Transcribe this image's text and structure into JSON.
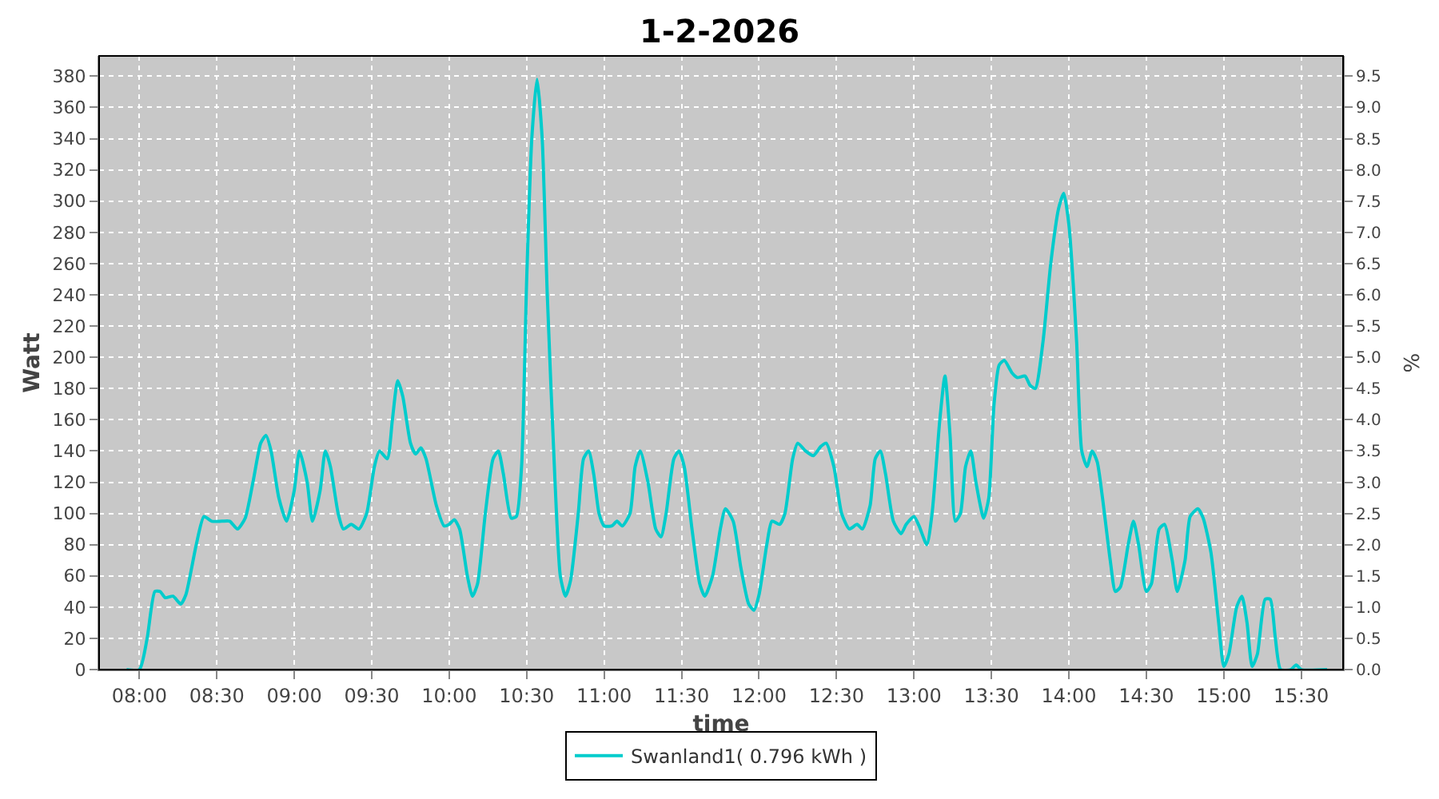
{
  "chart_data": {
    "type": "line",
    "title": "1-2-2026",
    "xlabel": "time",
    "ylabel": "Watt",
    "y2label": "%",
    "xlim": [
      7.74,
      15.77
    ],
    "xticks": [
      {
        "value": 8,
        "label": "08:00"
      },
      {
        "value": 8.5,
        "label": "08:30"
      },
      {
        "value": 9,
        "label": "09:00"
      },
      {
        "value": 9.5,
        "label": "09:30"
      },
      {
        "value": 10,
        "label": "10:00"
      },
      {
        "value": 10.5,
        "label": "10:30"
      },
      {
        "value": 11,
        "label": "11:00"
      },
      {
        "value": 11.5,
        "label": "11:30"
      },
      {
        "value": 12,
        "label": "12:00"
      },
      {
        "value": 12.5,
        "label": "12:30"
      },
      {
        "value": 13,
        "label": "13:00"
      },
      {
        "value": 13.5,
        "label": "13:30"
      },
      {
        "value": 14,
        "label": "14:00"
      },
      {
        "value": 14.5,
        "label": "14:30"
      },
      {
        "value": 15,
        "label": "15:00"
      },
      {
        "value": 15.5,
        "label": "15:30"
      }
    ],
    "ylim": [
      0,
      393
    ],
    "yticks": [
      0,
      20,
      40,
      60,
      80,
      100,
      120,
      140,
      160,
      180,
      200,
      220,
      240,
      260,
      280,
      300,
      320,
      340,
      360,
      380
    ],
    "y2lim": [
      0,
      9.825
    ],
    "y2ticks": [
      {
        "value": 0,
        "label": "0.0"
      },
      {
        "value": 0.5,
        "label": "0.5"
      },
      {
        "value": 1,
        "label": "1.0"
      },
      {
        "value": 1.5,
        "label": "1.5"
      },
      {
        "value": 2,
        "label": "2.0"
      },
      {
        "value": 2.5,
        "label": "2.5"
      },
      {
        "value": 3,
        "label": "3.0"
      },
      {
        "value": 3.5,
        "label": "3.5"
      },
      {
        "value": 4,
        "label": "4.0"
      },
      {
        "value": 4.5,
        "label": "4.5"
      },
      {
        "value": 5,
        "label": "5.0"
      },
      {
        "value": 5.5,
        "label": "5.5"
      },
      {
        "value": 6,
        "label": "6.0"
      },
      {
        "value": 6.5,
        "label": "6.5"
      },
      {
        "value": 7,
        "label": "7.0"
      },
      {
        "value": 7.5,
        "label": "7.5"
      },
      {
        "value": 8,
        "label": "8.0"
      },
      {
        "value": 8.5,
        "label": "8.5"
      },
      {
        "value": 9,
        "label": "9.0"
      },
      {
        "value": 9.5,
        "label": "9.5"
      }
    ],
    "grid": true,
    "legend": "bottom",
    "line_style": "solid",
    "series": [
      {
        "name": "Swanland1( 0.796 kWh )",
        "color": "#00cccc",
        "x": [
          7.917,
          8.0,
          8.05,
          8.1,
          8.133,
          8.167,
          8.217,
          8.267,
          8.3,
          8.367,
          8.417,
          8.467,
          8.533,
          8.583,
          8.633,
          8.683,
          8.733,
          8.783,
          8.817,
          8.85,
          8.9,
          8.95,
          9.0,
          9.033,
          9.083,
          9.117,
          9.167,
          9.2,
          9.233,
          9.283,
          9.317,
          9.367,
          9.417,
          9.467,
          9.517,
          9.55,
          9.6,
          9.633,
          9.667,
          9.7,
          9.75,
          9.783,
          9.817,
          9.85,
          9.917,
          9.967,
          10.0,
          10.033,
          10.067,
          10.117,
          10.15,
          10.183,
          10.233,
          10.283,
          10.317,
          10.35,
          10.4,
          10.433,
          10.467,
          10.5,
          10.533,
          10.567,
          10.6,
          10.633,
          10.683,
          10.717,
          10.75,
          10.783,
          10.833,
          10.867,
          10.9,
          10.933,
          10.967,
          11.0,
          11.05,
          11.083,
          11.117,
          11.167,
          11.2,
          11.233,
          11.283,
          11.333,
          11.367,
          11.4,
          11.45,
          11.483,
          11.517,
          11.567,
          11.617,
          11.65,
          11.7,
          11.75,
          11.783,
          11.833,
          11.883,
          11.933,
          11.967,
          12.0,
          12.05,
          12.083,
          12.133,
          12.167,
          12.217,
          12.25,
          12.3,
          12.35,
          12.4,
          12.433,
          12.483,
          12.533,
          12.583,
          12.633,
          12.667,
          12.717,
          12.75,
          12.783,
          12.817,
          12.867,
          12.917,
          12.95,
          13.0,
          13.033,
          13.083,
          13.117,
          13.167,
          13.2,
          13.233,
          13.267,
          13.3,
          13.333,
          13.367,
          13.4,
          13.45,
          13.483,
          13.517,
          13.55,
          13.583,
          13.633,
          13.667,
          13.717,
          13.75,
          13.783,
          13.833,
          13.883,
          13.933,
          13.967,
          14.0,
          14.05,
          14.083,
          14.117,
          14.15,
          14.183,
          14.217,
          14.267,
          14.3,
          14.333,
          14.383,
          14.417,
          14.45,
          14.5,
          14.533,
          14.583,
          14.617,
          14.667,
          14.7,
          14.75,
          14.783,
          14.833,
          14.867,
          14.917,
          14.967,
          15.0,
          15.033,
          15.083,
          15.117,
          15.15,
          15.183,
          15.217,
          15.267,
          15.3,
          15.333,
          15.367,
          15.433,
          15.467,
          15.5,
          15.667
        ],
        "values": [
          0,
          0,
          20,
          50,
          50,
          46,
          47,
          42,
          48,
          80,
          98,
          95,
          95,
          95,
          90,
          97,
          120,
          145,
          150,
          140,
          110,
          95,
          115,
          140,
          120,
          95,
          115,
          140,
          130,
          100,
          90,
          93,
          90,
          100,
          130,
          140,
          135,
          160,
          185,
          175,
          145,
          138,
          142,
          135,
          105,
          92,
          93,
          96,
          90,
          60,
          47,
          55,
          100,
          135,
          140,
          125,
          97,
          98,
          130,
          250,
          340,
          378,
          340,
          240,
          120,
          60,
          47,
          57,
          100,
          135,
          140,
          125,
          100,
          92,
          92,
          95,
          92,
          100,
          130,
          140,
          120,
          90,
          85,
          100,
          135,
          140,
          130,
          90,
          55,
          47,
          60,
          90,
          103,
          95,
          65,
          42,
          38,
          48,
          80,
          95,
          93,
          100,
          135,
          145,
          140,
          137,
          143,
          145,
          130,
          100,
          90,
          93,
          90,
          105,
          135,
          140,
          125,
          95,
          87,
          93,
          98,
          92,
          80,
          100,
          160,
          188,
          150,
          95,
          100,
          130,
          140,
          120,
          97,
          110,
          170,
          195,
          198,
          190,
          187,
          188,
          182,
          180,
          210,
          260,
          295,
          305,
          285,
          210,
          140,
          130,
          140,
          133,
          110,
          70,
          50,
          53,
          80,
          95,
          80,
          50,
          55,
          90,
          93,
          70,
          50,
          70,
          98,
          103,
          97,
          75,
          30,
          2,
          10,
          40,
          47,
          30,
          2,
          10,
          45,
          45,
          20,
          0,
          0,
          3,
          0,
          0
        ]
      }
    ]
  }
}
